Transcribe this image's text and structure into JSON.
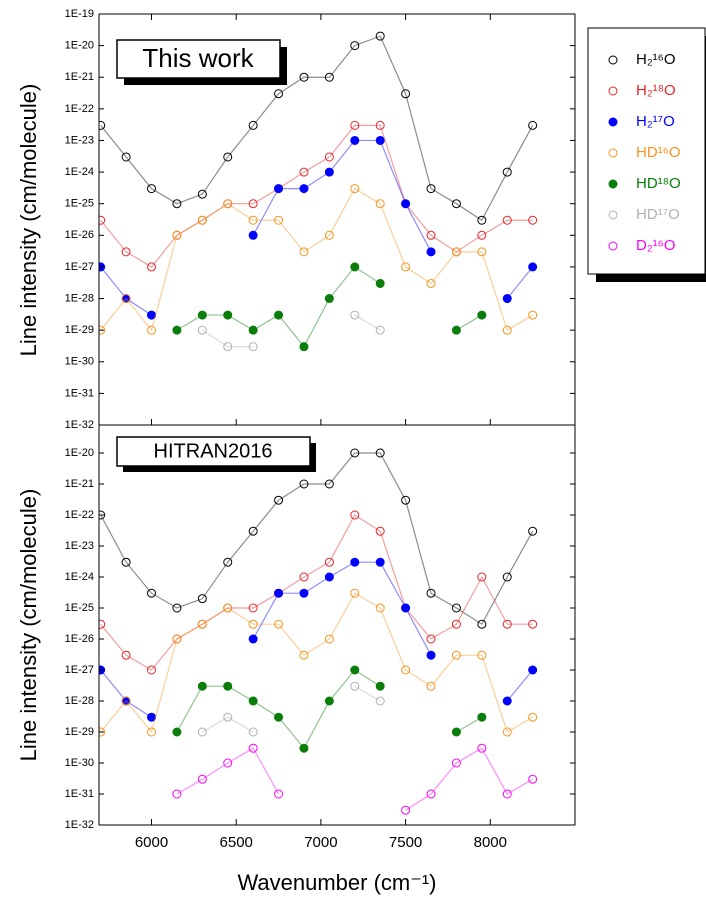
{
  "chart_data": [
    {
      "type": "scatter",
      "title": "This work",
      "ylabel": "Line intensity (cm/molecule)",
      "log_y": true,
      "legend": "right",
      "ylim": [
        1e-32,
        1e-19
      ],
      "yticks": [
        {
          "value": 1e-19,
          "label": "1E-19"
        },
        {
          "value": 1e-20,
          "label": "1E-20"
        },
        {
          "value": 1e-21,
          "label": "1E-21"
        },
        {
          "value": 1e-22,
          "label": "1E-22"
        },
        {
          "value": 1e-23,
          "label": "1E-23"
        },
        {
          "value": 1e-24,
          "label": "1E-24"
        },
        {
          "value": 1e-25,
          "label": "1E-25"
        },
        {
          "value": 1e-26,
          "label": "1E-26"
        },
        {
          "value": 1e-27,
          "label": "1E-27"
        },
        {
          "value": 1e-28,
          "label": "1E-28"
        },
        {
          "value": 1e-29,
          "label": "1E-29"
        },
        {
          "value": 1e-30,
          "label": "1E-30"
        },
        {
          "value": 1e-31,
          "label": "1E-31"
        },
        {
          "value": 1e-32,
          "label": "1E-32"
        }
      ],
      "xlim": [
        5690,
        8500
      ],
      "x": [
        5700,
        5850,
        6000,
        6150,
        6300,
        6450,
        6600,
        6750,
        6900,
        7050,
        7200,
        7350,
        7500,
        7650,
        7800,
        7950,
        8100,
        8250
      ],
      "series": [
        {
          "name": "H₂¹⁶O",
          "color": "#000000",
          "filled": false,
          "values": [
            3e-23,
            3e-24,
            3e-25,
            1e-25,
            2e-25,
            3e-24,
            3e-23,
            3e-22,
            1e-21,
            1e-21,
            1e-20,
            2e-20,
            3e-22,
            3e-25,
            1e-25,
            3e-26,
            1e-24,
            3e-23
          ]
        },
        {
          "name": "H₂¹⁸O",
          "color": "#e8262a",
          "filled": false,
          "values": [
            3e-26,
            3e-27,
            1e-27,
            1e-26,
            3e-26,
            1e-25,
            1e-25,
            3e-25,
            1e-24,
            3e-24,
            3e-23,
            3e-23,
            1e-25,
            1e-26,
            3e-27,
            1e-26,
            3e-26,
            3e-26
          ]
        },
        {
          "name": "H₂¹⁷O",
          "color": "#0000ff",
          "filled": true,
          "values": [
            1e-27,
            1e-28,
            3e-29,
            null,
            null,
            null,
            1e-26,
            3e-25,
            3e-25,
            1e-24,
            1e-23,
            1e-23,
            1e-25,
            3e-27,
            null,
            null,
            1e-28,
            1e-27
          ]
        },
        {
          "name": "HD¹⁶O",
          "color": "#f7941d",
          "filled": false,
          "values": [
            1e-29,
            1e-28,
            1e-29,
            1e-26,
            3e-26,
            1e-25,
            3e-26,
            3e-26,
            3e-27,
            1e-26,
            3e-25,
            1e-25,
            1e-27,
            3e-28,
            3e-27,
            3e-27,
            1e-29,
            3e-29
          ]
        },
        {
          "name": "HD¹⁸O",
          "color": "#0a7d0a",
          "filled": true,
          "values": [
            null,
            null,
            null,
            1e-29,
            3e-29,
            3e-29,
            1e-29,
            3e-29,
            3e-30,
            1e-28,
            1e-27,
            3e-28,
            null,
            null,
            1e-29,
            3e-29,
            null,
            null
          ]
        },
        {
          "name": "HD¹⁷O",
          "color": "#b0b0b0",
          "filled": false,
          "values": [
            null,
            null,
            null,
            null,
            1e-29,
            3e-30,
            3e-30,
            null,
            null,
            null,
            3e-29,
            1e-29,
            null,
            null,
            null,
            null,
            null,
            null
          ]
        },
        {
          "name": "D₂¹⁶O",
          "color": "#ff00ff",
          "filled": false,
          "values": [
            null,
            null,
            null,
            null,
            null,
            null,
            null,
            null,
            null,
            null,
            null,
            null,
            null,
            null,
            null,
            null,
            null,
            null
          ]
        }
      ]
    },
    {
      "type": "scatter",
      "title": "HITRAN2016",
      "ylabel": "Line intensity (cm/molecule)",
      "xlabel": "Wavenumber (cm⁻¹)",
      "log_y": true,
      "ylim": [
        1e-32,
        8e-20
      ],
      "yticks": [
        {
          "value": 1e-20,
          "label": "1E-20"
        },
        {
          "value": 1e-21,
          "label": "1E-21"
        },
        {
          "value": 1e-22,
          "label": "1E-22"
        },
        {
          "value": 1e-23,
          "label": "1E-23"
        },
        {
          "value": 1e-24,
          "label": "1E-24"
        },
        {
          "value": 1e-25,
          "label": "1E-25"
        },
        {
          "value": 1e-26,
          "label": "1E-26"
        },
        {
          "value": 1e-27,
          "label": "1E-27"
        },
        {
          "value": 1e-28,
          "label": "1E-28"
        },
        {
          "value": 1e-29,
          "label": "1E-29"
        },
        {
          "value": 1e-30,
          "label": "1E-30"
        },
        {
          "value": 1e-31,
          "label": "1E-31"
        },
        {
          "value": 1e-32,
          "label": "1E-32"
        }
      ],
      "xlim": [
        5690,
        8500
      ],
      "xticks": [
        6000,
        6500,
        7000,
        7500,
        8000
      ],
      "x": [
        5700,
        5850,
        6000,
        6150,
        6300,
        6450,
        6600,
        6750,
        6900,
        7050,
        7200,
        7350,
        7500,
        7650,
        7800,
        7950,
        8100,
        8250
      ],
      "series": [
        {
          "color": "#000000",
          "filled": false,
          "values": [
            1e-22,
            3e-24,
            3e-25,
            1e-25,
            2e-25,
            3e-24,
            3e-23,
            3e-22,
            1e-21,
            1e-21,
            1e-20,
            1e-20,
            3e-22,
            3e-25,
            1e-25,
            3e-26,
            1e-24,
            3e-23
          ]
        },
        {
          "color": "#e8262a",
          "filled": false,
          "values": [
            3e-26,
            3e-27,
            1e-27,
            1e-26,
            3e-26,
            1e-25,
            1e-25,
            3e-25,
            1e-24,
            3e-24,
            1e-22,
            3e-23,
            1e-25,
            1e-26,
            3e-26,
            1e-24,
            3e-26,
            3e-26
          ]
        },
        {
          "color": "#0000ff",
          "filled": true,
          "values": [
            1e-27,
            1e-28,
            3e-29,
            null,
            null,
            null,
            1e-26,
            3e-25,
            3e-25,
            1e-24,
            3e-24,
            3e-24,
            1e-25,
            3e-27,
            null,
            null,
            1e-28,
            1e-27
          ]
        },
        {
          "color": "#f7941d",
          "filled": false,
          "values": [
            1e-29,
            1e-28,
            1e-29,
            1e-26,
            3e-26,
            1e-25,
            3e-26,
            3e-26,
            3e-27,
            1e-26,
            3e-25,
            1e-25,
            1e-27,
            3e-28,
            3e-27,
            3e-27,
            1e-29,
            3e-29
          ]
        },
        {
          "color": "#0a7d0a",
          "filled": true,
          "values": [
            null,
            null,
            null,
            1e-29,
            3e-28,
            3e-28,
            1e-28,
            3e-29,
            3e-30,
            1e-28,
            1e-27,
            3e-28,
            null,
            null,
            1e-29,
            3e-29,
            null,
            null
          ]
        },
        {
          "color": "#b0b0b0",
          "filled": false,
          "values": [
            null,
            null,
            null,
            null,
            1e-29,
            3e-29,
            1e-29,
            null,
            null,
            null,
            3e-28,
            1e-28,
            null,
            null,
            null,
            null,
            null,
            null
          ]
        },
        {
          "color": "#ff00ff",
          "filled": false,
          "values": [
            null,
            null,
            null,
            1e-31,
            3e-31,
            1e-30,
            3e-30,
            1e-31,
            null,
            null,
            null,
            null,
            3e-32,
            1e-31,
            1e-30,
            3e-30,
            1e-31,
            3e-31
          ]
        }
      ]
    }
  ]
}
